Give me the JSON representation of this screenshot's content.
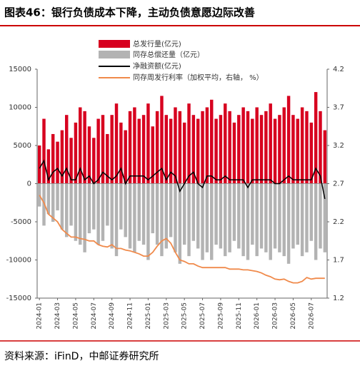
{
  "chart_data": {
    "type": "bar-line",
    "title": "图表46：银行负债成本下降，主动负债意愿边际改善",
    "source": "资料来源：iFinD，中邮证券研究所",
    "categories": [
      "2024-01",
      null,
      null,
      null,
      "2024-03",
      null,
      null,
      null,
      "2024-05",
      null,
      null,
      null,
      "2024-07",
      null,
      null,
      null,
      "2024-09",
      null,
      null,
      null,
      "2024-11",
      null,
      null,
      null,
      "2025-01",
      null,
      null,
      null,
      "2025-03",
      null,
      null,
      null,
      "2025-05",
      null,
      null,
      null,
      "2025-07",
      null,
      null,
      null,
      "2025-09",
      null,
      null,
      null,
      "2025-11",
      null,
      null,
      null,
      "2026-01",
      null,
      null,
      null,
      "2026-03",
      null,
      null,
      null,
      "2026-05",
      null,
      null,
      null,
      "2026-07",
      null,
      null,
      null
    ],
    "ylim": [
      -15000,
      15000
    ],
    "yticks": [
      -15000,
      -10000,
      -5000,
      0,
      5000,
      10000,
      15000
    ],
    "y2lim": [
      1.2,
      4.2
    ],
    "y2ticks": [
      1.2,
      1.7,
      2.2,
      2.7,
      3.2,
      3.7,
      4.2
    ],
    "series": [
      {
        "name": "总发行量(亿元)",
        "kind": "bar",
        "color": "#d7001f",
        "values": [
          5000,
          8500,
          4500,
          6500,
          5500,
          7000,
          9000,
          6000,
          8000,
          10000,
          9500,
          7500,
          6000,
          8500,
          9000,
          6500,
          9000,
          10500,
          8000,
          7000,
          9500,
          10000,
          8500,
          9000,
          10500,
          7500,
          9500,
          11500,
          9000,
          8500,
          10000,
          9500,
          8000,
          10500,
          9000,
          8500,
          9500,
          10000,
          11000,
          8500,
          9000,
          10500,
          9500,
          8000,
          9000,
          10000,
          9500,
          8500,
          10000,
          9000,
          9500,
          10500,
          8500,
          9000,
          10000,
          11500,
          9000,
          8500,
          10000,
          9500,
          8000,
          12000,
          9500,
          7000
        ]
      },
      {
        "name": "同存总偿还量（亿元）",
        "kind": "bar",
        "color": "#b3b3b3",
        "values": [
          -3000,
          -5500,
          -4000,
          -5000,
          -3500,
          -6000,
          -7000,
          -5500,
          -7500,
          -8000,
          -9000,
          -6500,
          -6000,
          -8000,
          -7500,
          -5500,
          -8500,
          -9500,
          -6000,
          -7000,
          -8500,
          -9000,
          -7500,
          -8000,
          -10000,
          -6500,
          -8000,
          -9500,
          -8500,
          -7000,
          -9000,
          -10500,
          -8000,
          -9500,
          -7500,
          -8500,
          -10000,
          -9000,
          -10000,
          -8000,
          -8500,
          -9500,
          -9000,
          -7500,
          -8500,
          -9500,
          -10000,
          -8000,
          -9500,
          -8500,
          -9000,
          -10000,
          -8500,
          -9000,
          -9500,
          -10500,
          -8500,
          -8000,
          -9500,
          -9000,
          -7500,
          -10000,
          -8500,
          -9000
        ]
      },
      {
        "name": "净融资额(亿元)",
        "kind": "line",
        "color": "#000000",
        "values": [
          2000,
          3000,
          500,
          1500,
          2000,
          1000,
          2000,
          500,
          500,
          2000,
          500,
          1000,
          0,
          500,
          1500,
          1000,
          500,
          1000,
          2000,
          0,
          1000,
          1000,
          1000,
          1000,
          500,
          1000,
          1500,
          2000,
          500,
          1500,
          1000,
          -1000,
          0,
          1000,
          1500,
          0,
          -500,
          1000,
          1000,
          500,
          500,
          1000,
          500,
          500,
          500,
          500,
          -500,
          500,
          500,
          500,
          500,
          500,
          0,
          0,
          500,
          1000,
          500,
          500,
          500,
          500,
          500,
          2000,
          1000,
          -2000
        ]
      },
      {
        "name": "同存周发行利率（加权平均，右轴， %）",
        "kind": "line",
        "axis": "y2",
        "color": "#f08a4b",
        "values": [
          2.55,
          2.45,
          2.3,
          2.25,
          2.2,
          2.1,
          2.05,
          2.0,
          2.0,
          1.98,
          1.97,
          1.95,
          1.95,
          1.9,
          1.88,
          1.87,
          1.9,
          1.85,
          1.85,
          1.83,
          1.82,
          1.8,
          1.78,
          1.75,
          1.75,
          1.8,
          1.88,
          1.95,
          1.98,
          1.92,
          1.8,
          1.7,
          1.68,
          1.65,
          1.65,
          1.62,
          1.6,
          1.6,
          1.6,
          1.6,
          1.6,
          1.6,
          1.58,
          1.58,
          1.58,
          1.57,
          1.57,
          1.56,
          1.55,
          1.53,
          1.5,
          1.48,
          1.45,
          1.44,
          1.45,
          1.42,
          1.4,
          1.4,
          1.42,
          1.47,
          1.45,
          1.46,
          1.46,
          1.46
        ]
      }
    ]
  }
}
